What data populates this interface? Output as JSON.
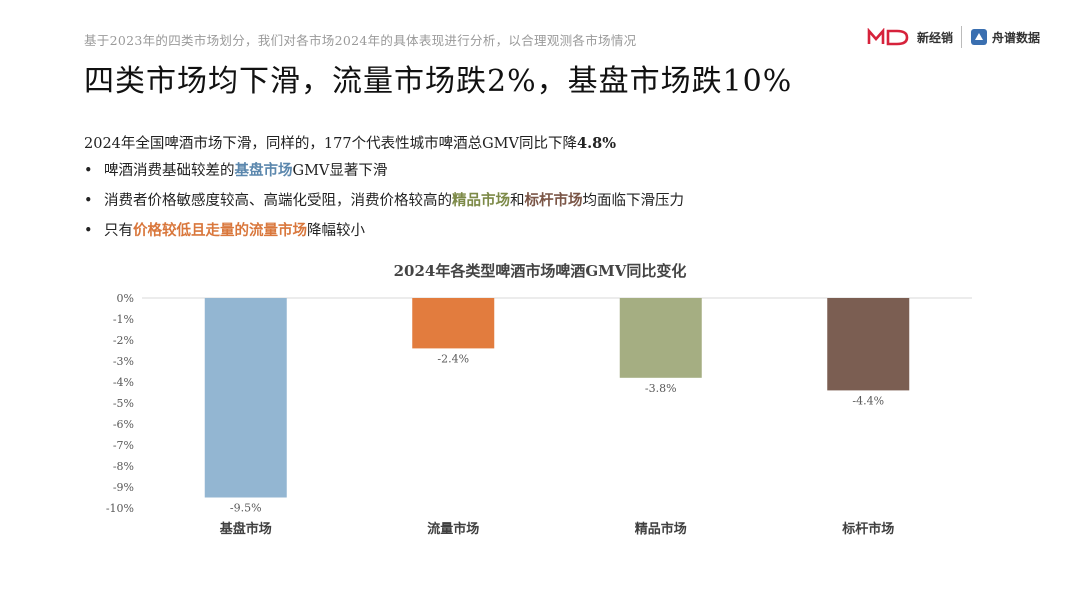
{
  "header": {
    "subtitle": "基于2023年的四类市场划分，我们对各市场2024年的具体表现进行分析，以合理观测各市场情况",
    "title": "四类市场均下滑，流量市场跌2%，基盘市场跌10%",
    "logo1_text": "新经销",
    "logo2_text": "舟谱数据"
  },
  "lead": {
    "text": "2024年全国啤酒市场下滑，同样的，177个代表性城市啤酒总GMV同比下降",
    "emphasis": "4.8%"
  },
  "bullets": [
    {
      "before": "啤酒消费基础较差的",
      "hl1": "基盘市场",
      "middle": "GMV显著下滑",
      "hl2": "",
      "after": ""
    },
    {
      "before": "消费者价格敏感度较高、高端化受阻，消费价格较高的",
      "hl1": "精品市场",
      "middle": "和",
      "hl2": "标杆市场",
      "after": "均面临下滑压力"
    },
    {
      "before": "只有",
      "hl1": "价格较低且走量的流量市场",
      "middle": "降幅较小",
      "hl2": "",
      "after": ""
    }
  ],
  "colors": {
    "grid": "#d9d9d9",
    "axis_text": "#595959"
  },
  "chart_data": {
    "type": "bar",
    "title": "2024年各类型啤酒市场啤酒GMV同比变化",
    "categories": [
      "基盘市场",
      "流量市场",
      "精品市场",
      "标杆市场"
    ],
    "values": [
      -9.5,
      -2.4,
      -3.8,
      -4.4
    ],
    "value_labels": [
      "-9.5%",
      "-2.4%",
      "-3.8%",
      "-4.4%"
    ],
    "colors": [
      "#93b6d2",
      "#e27c3e",
      "#a5ae82",
      "#7b5e52"
    ],
    "y_ticks": [
      "0%",
      "-1%",
      "-2%",
      "-3%",
      "-4%",
      "-5%",
      "-6%",
      "-7%",
      "-8%",
      "-9%",
      "-10%"
    ],
    "ylim": [
      -10,
      0
    ],
    "grid": false,
    "legend": "none"
  }
}
